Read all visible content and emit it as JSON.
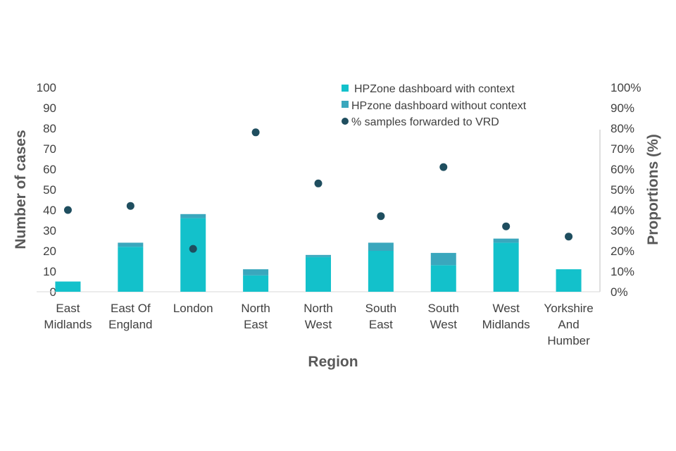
{
  "chart_data": {
    "type": "bar",
    "title": "",
    "xlabel": "Region",
    "ylabel": "Number of cases",
    "y2label": "Proportions (%)",
    "ylim": [
      0,
      100
    ],
    "y2lim": [
      0,
      100
    ],
    "yticks": [
      "0",
      "10",
      "20",
      "30",
      "40",
      "50",
      "60",
      "70",
      "80",
      "90",
      "100"
    ],
    "y2ticks": [
      "0%",
      "10%",
      "20%",
      "30%",
      "40%",
      "50%",
      "60%",
      "70%",
      "80%",
      "90%",
      "100%"
    ],
    "categories": [
      [
        "East",
        "Midlands"
      ],
      [
        "East Of",
        "England"
      ],
      [
        "London"
      ],
      [
        "North",
        "East"
      ],
      [
        "North",
        "West"
      ],
      [
        "South",
        "East"
      ],
      [
        "South",
        "West"
      ],
      [
        "West",
        "Midlands"
      ],
      [
        "Yorkshire",
        "And",
        "Humber"
      ]
    ],
    "series": [
      {
        "name": "HPZone dashboard with context",
        "kind": "bar",
        "axis": "left",
        "color": "#13c1cb",
        "values": [
          5,
          22,
          36,
          8,
          17,
          20,
          13,
          24,
          11
        ]
      },
      {
        "name": "HPzone dashboard without context",
        "kind": "bar",
        "axis": "left",
        "color": "#3aa7bd",
        "values": [
          0,
          2,
          2,
          3,
          1,
          4,
          6,
          2,
          0
        ]
      },
      {
        "name": "% samples forwarded to VRD",
        "kind": "scatter",
        "axis": "right",
        "color": "#1f4e5f",
        "values": [
          40,
          42,
          21,
          78,
          53,
          37,
          61,
          32,
          27
        ]
      }
    ],
    "legend_position": "top-right"
  }
}
